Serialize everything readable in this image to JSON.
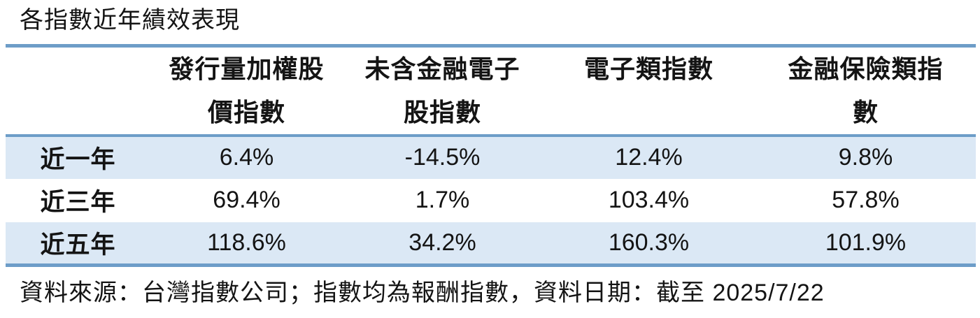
{
  "title": "各指數近年績效表現",
  "colors": {
    "accent_line": "#6d9dc8",
    "row_stripe": "#dbe8f5",
    "text": "#141414"
  },
  "table": {
    "headers": [
      "",
      "發行量加權股\n價指數",
      "未含金融電子\n股指數",
      "電子類指數",
      "金融保險類指\n數"
    ],
    "rows": [
      {
        "label": "近一年",
        "values": [
          "6.4%",
          "-14.5%",
          "12.4%",
          "9.8%"
        ]
      },
      {
        "label": "近三年",
        "values": [
          "69.4%",
          "1.7%",
          "103.4%",
          "57.8%"
        ]
      },
      {
        "label": "近五年",
        "values": [
          "118.6%",
          "34.2%",
          "160.3%",
          "101.9%"
        ]
      }
    ]
  },
  "source_note": "資料來源：台灣指數公司；指數均為報酬指數，資料日期：截至 2025/7/22",
  "chart_data": {
    "type": "table",
    "title": "各指數近年績效表現",
    "columns": [
      "發行量加權股價指數",
      "未含金融電子股指數",
      "電子類指數",
      "金融保險類指數"
    ],
    "row_labels": [
      "近一年",
      "近三年",
      "近五年"
    ],
    "values_pct": [
      [
        6.4,
        -14.5,
        12.4,
        9.8
      ],
      [
        69.4,
        1.7,
        103.4,
        57.8
      ],
      [
        118.6,
        34.2,
        160.3,
        101.9
      ]
    ],
    "note": "資料來源：台灣指數公司；指數均為報酬指數，資料日期：截至 2025/7/22"
  }
}
